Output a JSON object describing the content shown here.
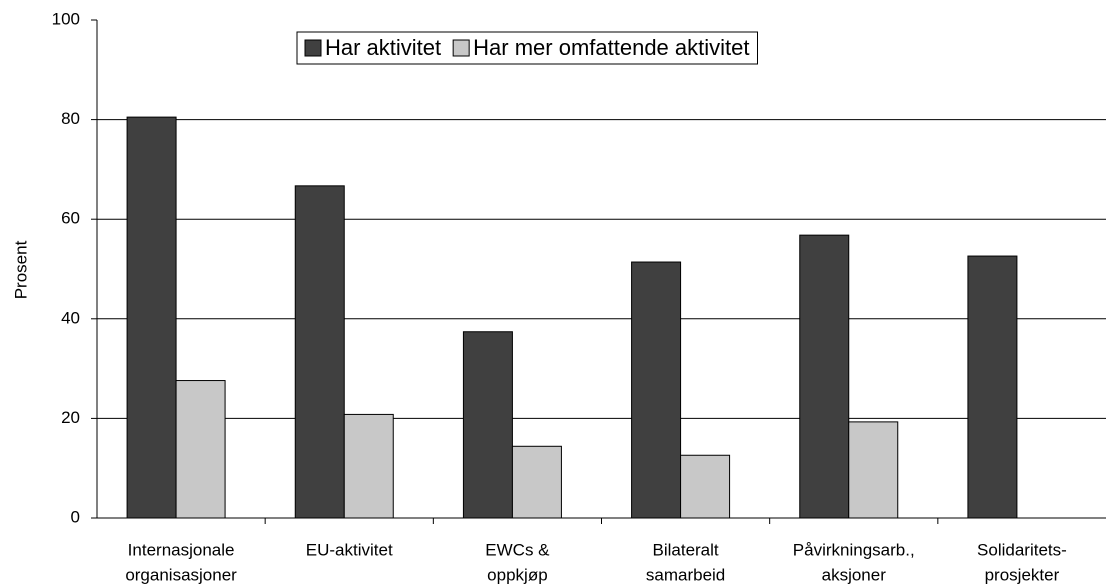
{
  "chart_data": {
    "type": "bar",
    "y_label": "Prosent",
    "categories": [
      [
        "Internasjonale",
        "organisasjoner"
      ],
      [
        "EU-aktivitet"
      ],
      [
        "EWCs &",
        "oppkjøp"
      ],
      [
        "Bilateralt",
        "samarbeid"
      ],
      [
        "Påvirkningsarb.,",
        "aksjoner"
      ],
      [
        "Solidaritets-",
        "prosjekter"
      ]
    ],
    "series": [
      {
        "name": "Har aktivitet",
        "color": "#404040",
        "values": [
          80.5,
          66.7,
          37.4,
          51.4,
          56.8,
          52.6
        ]
      },
      {
        "name": "Har mer omfattende aktivitet",
        "color": "#c8c8c8",
        "values": [
          27.6,
          20.8,
          14.4,
          12.6,
          19.3,
          null
        ]
      }
    ],
    "ylim": [
      0,
      100
    ],
    "yticks": [
      0,
      20,
      40,
      60,
      80,
      100
    ],
    "grid": true,
    "legend": "top"
  }
}
